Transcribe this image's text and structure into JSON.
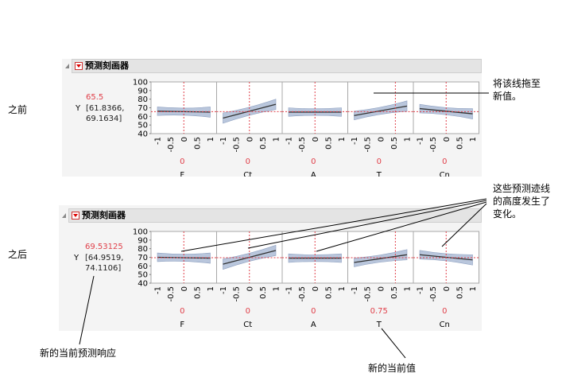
{
  "labels": {
    "before": "之前",
    "after": "之后"
  },
  "panel_title": "预测刻画器",
  "response_symbol": "Y",
  "y_ticks": [
    "100",
    "90",
    "80",
    "70",
    "60",
    "50",
    "40"
  ],
  "x_ticks": [
    "-1",
    "-0.5",
    "0",
    "0.5",
    "1"
  ],
  "before": {
    "pred": "65.5",
    "ci_line1": "[61.8366,",
    "ci_line2": "69.1634]",
    "factors": [
      {
        "name": "F",
        "value": "0"
      },
      {
        "name": "Ct",
        "value": "0"
      },
      {
        "name": "A",
        "value": "0"
      },
      {
        "name": "T",
        "value": "0"
      },
      {
        "name": "Cn",
        "value": "0"
      }
    ]
  },
  "after": {
    "pred": "69.53125",
    "ci_line1": "[64.9519,",
    "ci_line2": "74.1106]",
    "factors": [
      {
        "name": "F",
        "value": "0"
      },
      {
        "name": "Ct",
        "value": "0"
      },
      {
        "name": "A",
        "value": "0"
      },
      {
        "name": "T",
        "value": "0.75"
      },
      {
        "name": "Cn",
        "value": "0"
      }
    ]
  },
  "annotations": {
    "drag_line_1": "将该线拖至",
    "drag_line_2": "新值。",
    "traces_1": "这些预测迹线",
    "traces_2": "的高度发生了",
    "traces_3": "变化。",
    "new_response": "新的当前预测响应",
    "new_value": "新的当前值"
  },
  "colors": {
    "accent_red": "#e0404a",
    "band": "#b9c6dc",
    "line": "#333333"
  }
}
